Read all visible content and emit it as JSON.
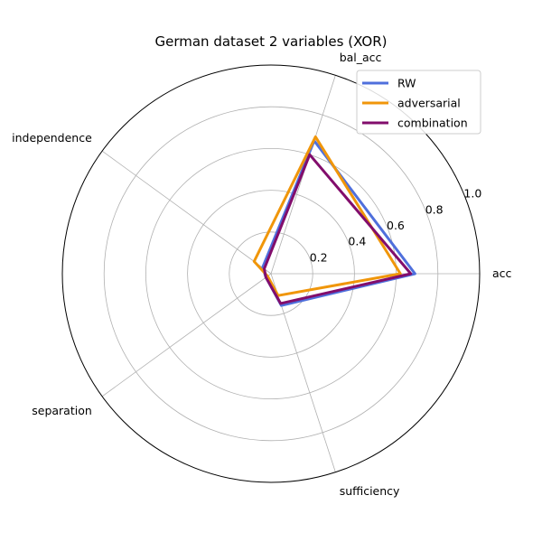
{
  "chart_data": {
    "type": "radar",
    "title": "German dataset 2 variables (XOR)",
    "axes": [
      "acc",
      "bal_acc",
      "independence",
      "separation",
      "sufficiency"
    ],
    "rlim": [
      0,
      1.0
    ],
    "rticks": [
      "0.2",
      "0.4",
      "0.6",
      "0.8",
      "1.0"
    ],
    "rtick_values": [
      0.2,
      0.4,
      0.6,
      0.8,
      1.0
    ],
    "grid": true,
    "legend_position": "top-right",
    "series": [
      {
        "name": "RW",
        "color": "#4f6fdc",
        "values": [
          0.69,
          0.67,
          0.05,
          0.03,
          0.16
        ]
      },
      {
        "name": "adversarial",
        "color": "#f0960a",
        "values": [
          0.62,
          0.69,
          0.1,
          0.02,
          0.11
        ]
      },
      {
        "name": "combination",
        "color": "#820d6c",
        "values": [
          0.67,
          0.6,
          0.04,
          0.03,
          0.15
        ]
      }
    ]
  }
}
